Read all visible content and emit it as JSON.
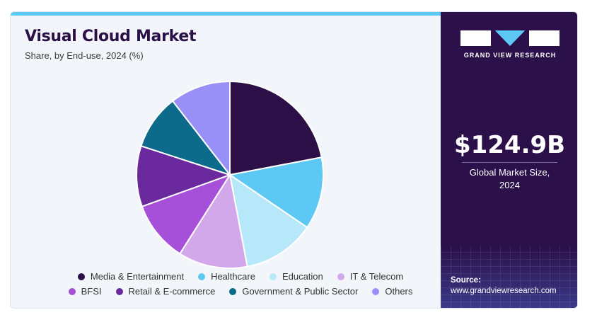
{
  "header": {
    "title": "Visual Cloud Market",
    "subtitle": "Share, by End-use, 2024 (%)"
  },
  "brand": {
    "name": "GRAND VIEW RESEARCH"
  },
  "stat": {
    "value": "$124.9B",
    "label_line1": "Global Market Size,",
    "label_line2": "2024"
  },
  "source": {
    "label": "Source:",
    "url": "www.grandviewresearch.com"
  },
  "colors": {
    "accent": "#5ec8f5",
    "sidebar": "#2b1049"
  },
  "chart_data": {
    "type": "pie",
    "categories": [
      "Media & Entertainment",
      "Healthcare",
      "Education",
      "IT & Telecom",
      "BFSI",
      "Retail & E-commerce",
      "Government & Public Sector",
      "Others"
    ],
    "values": [
      22,
      12.5,
      12.5,
      12,
      10.5,
      10.5,
      9.5,
      10.5
    ],
    "colors": [
      "#2d0f47",
      "#5ec8f5",
      "#b7e8f9",
      "#d3a8ea",
      "#a64fd9",
      "#6a2a9e",
      "#0c6a8a",
      "#9990f7"
    ],
    "legend_placement": "bottom"
  }
}
